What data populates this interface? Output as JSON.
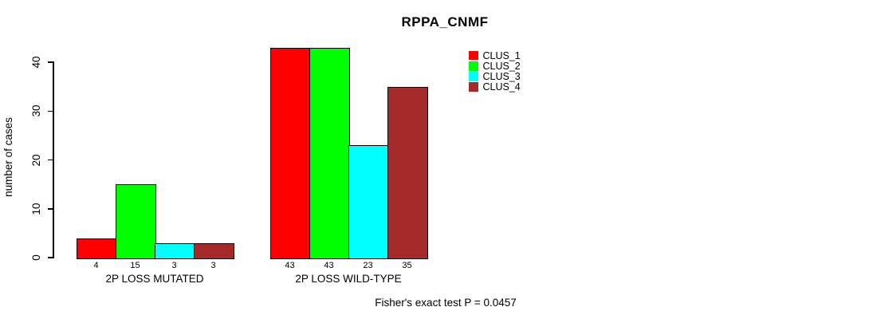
{
  "chart_data": {
    "type": "bar",
    "title": "RPPA_CNMF",
    "xlabel": "",
    "ylabel": "number of cases",
    "ylim": [
      0,
      43
    ],
    "yticks": [
      0,
      10,
      20,
      30,
      40
    ],
    "grid": false,
    "legend_position": "top-right",
    "categories": [
      "2P LOSS MUTATED",
      "2P LOSS WILD-TYPE"
    ],
    "series": [
      {
        "name": "CLUS_1",
        "color": "#ff0000",
        "values": [
          4,
          43
        ]
      },
      {
        "name": "CLUS_2",
        "color": "#00ff00",
        "values": [
          15,
          43
        ]
      },
      {
        "name": "CLUS_3",
        "color": "#00ffff",
        "values": [
          3,
          23
        ]
      },
      {
        "name": "CLUS_4",
        "color": "#a52a2a",
        "values": [
          3,
          35
        ]
      }
    ],
    "bar_value_labels": [
      [
        "4",
        "15",
        "3",
        "3"
      ],
      [
        "43",
        "43",
        "23",
        "35"
      ]
    ],
    "annotation": "Fisher's exact test P = 0.0457"
  }
}
